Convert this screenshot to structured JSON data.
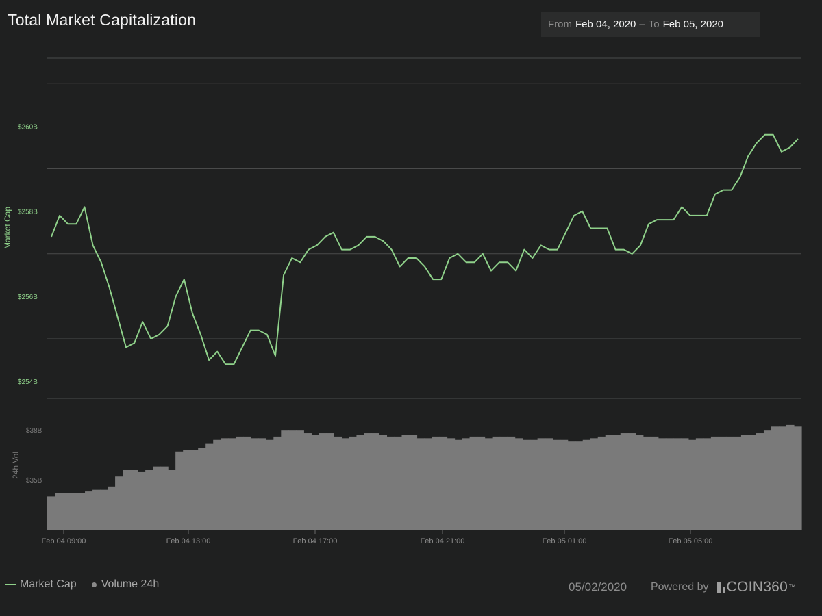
{
  "title": "Total Market Capitalization",
  "date_range": {
    "from_label": "From",
    "from_value": "Feb 04, 2020",
    "separator": "–",
    "to_label": "To",
    "to_value": "Feb 05, 2020"
  },
  "legend": {
    "market_cap_label": "Market Cap",
    "volume_label": "Volume 24h"
  },
  "footer": {
    "date": "05/02/2020",
    "powered_by": "Powered by",
    "brand": "COIN360",
    "brand_tm": "™"
  },
  "colors": {
    "background": "#1f2020",
    "line": "#8fd18a",
    "volume": "#7a7a7a",
    "grid": "#4a4b4b"
  },
  "chart_data": {
    "type": "line",
    "title": "Total Market Capitalization",
    "x_ticks": [
      "Feb 04 09:00",
      "Feb 04 13:00",
      "Feb 04 17:00",
      "Feb 04 21:00",
      "Feb 05 01:00",
      "Feb 05 05:00"
    ],
    "grid": true,
    "market_cap": {
      "ylabel": "Market Cap",
      "ylim": [
        253.6,
        261.6
      ],
      "y_ticks": [
        {
          "value": 254,
          "label": "$254B"
        },
        {
          "value": 256,
          "label": "$256B"
        },
        {
          "value": 258,
          "label": "$258B"
        },
        {
          "value": 260,
          "label": "$260B"
        }
      ],
      "unit": "billion USD",
      "values": [
        257.4,
        257.9,
        257.7,
        257.7,
        258.1,
        257.2,
        256.8,
        256.2,
        255.5,
        254.8,
        254.9,
        255.4,
        255.0,
        255.1,
        255.3,
        256.0,
        256.4,
        255.6,
        255.1,
        254.5,
        254.7,
        254.4,
        254.4,
        254.8,
        255.2,
        255.2,
        255.1,
        254.6,
        256.5,
        256.9,
        256.8,
        257.1,
        257.2,
        257.4,
        257.5,
        257.1,
        257.1,
        257.2,
        257.4,
        257.4,
        257.3,
        257.1,
        256.7,
        256.9,
        256.9,
        256.7,
        256.4,
        256.4,
        256.9,
        257.0,
        256.8,
        256.8,
        257.0,
        256.6,
        256.8,
        256.8,
        256.6,
        257.1,
        256.9,
        257.2,
        257.1,
        257.1,
        257.5,
        257.9,
        258.0,
        257.6,
        257.6,
        257.6,
        257.1,
        257.1,
        257.0,
        257.2,
        257.7,
        257.8,
        257.8,
        257.8,
        258.1,
        257.9,
        257.9,
        257.9,
        258.4,
        258.5,
        258.5,
        258.8,
        259.3,
        259.6,
        259.8,
        259.8,
        259.4,
        259.5,
        259.7
      ]
    },
    "volume": {
      "ylabel": "24h Vol",
      "ylim": [
        32.0,
        39.9
      ],
      "y_ticks": [
        {
          "value": 35,
          "label": "$35B"
        },
        {
          "value": 38,
          "label": "$38B"
        }
      ],
      "unit": "billion USD",
      "values": [
        34.0,
        34.2,
        34.2,
        34.2,
        34.2,
        34.3,
        34.4,
        34.4,
        34.6,
        35.2,
        35.6,
        35.6,
        35.5,
        35.6,
        35.8,
        35.8,
        35.6,
        36.7,
        36.8,
        36.8,
        36.9,
        37.2,
        37.4,
        37.5,
        37.5,
        37.6,
        37.6,
        37.5,
        37.5,
        37.4,
        37.6,
        38.0,
        38.0,
        38.0,
        37.8,
        37.7,
        37.8,
        37.8,
        37.6,
        37.5,
        37.6,
        37.7,
        37.8,
        37.8,
        37.7,
        37.6,
        37.6,
        37.7,
        37.7,
        37.5,
        37.5,
        37.6,
        37.6,
        37.5,
        37.4,
        37.5,
        37.6,
        37.6,
        37.5,
        37.6,
        37.6,
        37.6,
        37.5,
        37.4,
        37.4,
        37.5,
        37.5,
        37.4,
        37.4,
        37.3,
        37.3,
        37.4,
        37.5,
        37.6,
        37.7,
        37.7,
        37.8,
        37.8,
        37.7,
        37.6,
        37.6,
        37.5,
        37.5,
        37.5,
        37.5,
        37.4,
        37.5,
        37.5,
        37.6,
        37.6,
        37.6,
        37.6,
        37.7,
        37.7,
        37.8,
        38.0,
        38.2,
        38.2,
        38.3,
        38.2
      ]
    }
  }
}
